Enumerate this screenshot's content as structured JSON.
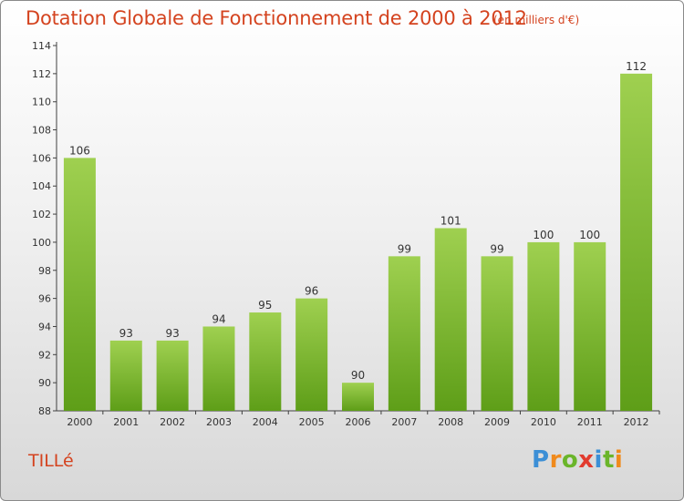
{
  "title": "Dotation Globale de Fonctionnement de 2000 à 2012",
  "unit_note": "(en milliers d'€)",
  "commune": "TILLé",
  "logo": {
    "letters": [
      "P",
      "r",
      "o",
      "x",
      "i",
      "t",
      "i"
    ],
    "colors": [
      "#3c8fd6",
      "#f08a1c",
      "#6ab52a",
      "#e23b2e",
      "#3c8fd6",
      "#6ab52a",
      "#f08a1c"
    ]
  },
  "colors": {
    "bar_top": "#9fd050",
    "bar_bottom": "#5e9e18",
    "axis": "#404040",
    "text": "#333333"
  },
  "chart_data": {
    "type": "bar",
    "title": "Dotation Globale de Fonctionnement de 2000 à 2012",
    "xlabel": "",
    "ylabel": "",
    "categories": [
      "2000",
      "2001",
      "2002",
      "2003",
      "2004",
      "2005",
      "2006",
      "2007",
      "2008",
      "2009",
      "2010",
      "2011",
      "2012"
    ],
    "values": [
      106,
      93,
      93,
      94,
      95,
      96,
      90,
      99,
      101,
      99,
      100,
      100,
      112
    ],
    "data_labels": [
      "106",
      "93",
      "93",
      "94",
      "95",
      "96",
      "90",
      "99",
      "101",
      "99",
      "100",
      "100",
      "112"
    ],
    "ylim": [
      88,
      114
    ],
    "yticks": [
      88,
      90,
      92,
      94,
      96,
      98,
      100,
      102,
      104,
      106,
      108,
      110,
      112,
      114
    ],
    "grid": false,
    "legend": "none"
  }
}
